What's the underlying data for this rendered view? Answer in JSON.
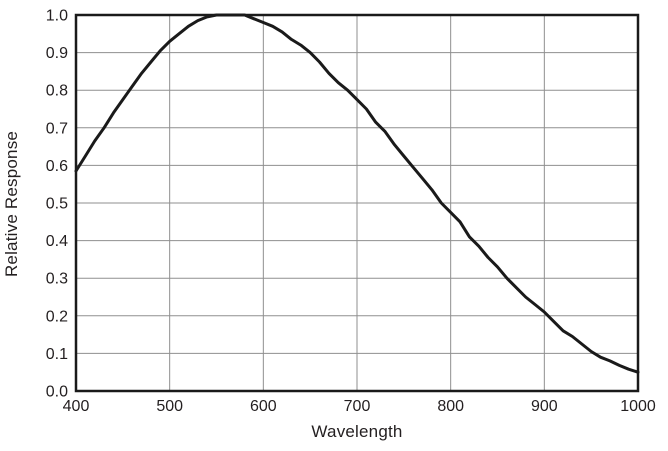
{
  "chart_data": {
    "type": "line",
    "title": "",
    "xlabel": "Wavelength",
    "ylabel": "Relative Response",
    "xlim": [
      400,
      1000
    ],
    "ylim": [
      0.0,
      1.0
    ],
    "x_ticks": [
      400,
      500,
      600,
      700,
      800,
      900,
      1000
    ],
    "y_ticks": [
      "0.0",
      "0.1",
      "0.2",
      "0.3",
      "0.4",
      "0.5",
      "0.6",
      "0.7",
      "0.8",
      "0.9",
      "1.0"
    ],
    "grid": true,
    "legend": "none",
    "colors": {
      "curve": "#1a1a1a",
      "frame": "#1a1a1a",
      "grid": "#8f8f8f",
      "text": "#231f20",
      "background": "#ffffff"
    },
    "series": [
      {
        "name": "relative-response",
        "x": [
          400,
          410,
          420,
          430,
          440,
          450,
          460,
          470,
          480,
          490,
          500,
          510,
          520,
          530,
          540,
          550,
          560,
          570,
          580,
          590,
          600,
          610,
          620,
          630,
          640,
          650,
          660,
          670,
          680,
          690,
          700,
          710,
          720,
          730,
          740,
          750,
          760,
          770,
          780,
          790,
          800,
          810,
          820,
          830,
          840,
          850,
          860,
          870,
          880,
          890,
          900,
          910,
          920,
          930,
          940,
          950,
          960,
          970,
          980,
          990,
          1000
        ],
        "values": [
          0.585,
          0.625,
          0.665,
          0.7,
          0.74,
          0.775,
          0.81,
          0.845,
          0.875,
          0.905,
          0.93,
          0.95,
          0.97,
          0.985,
          0.995,
          1.0,
          1.0,
          1.0,
          1.0,
          0.99,
          0.98,
          0.97,
          0.955,
          0.935,
          0.92,
          0.9,
          0.875,
          0.845,
          0.82,
          0.8,
          0.775,
          0.75,
          0.715,
          0.69,
          0.655,
          0.625,
          0.595,
          0.565,
          0.535,
          0.5,
          0.475,
          0.45,
          0.41,
          0.385,
          0.355,
          0.33,
          0.3,
          0.275,
          0.25,
          0.23,
          0.21,
          0.185,
          0.16,
          0.145,
          0.125,
          0.105,
          0.09,
          0.08,
          0.068,
          0.058,
          0.05
        ]
      }
    ]
  }
}
